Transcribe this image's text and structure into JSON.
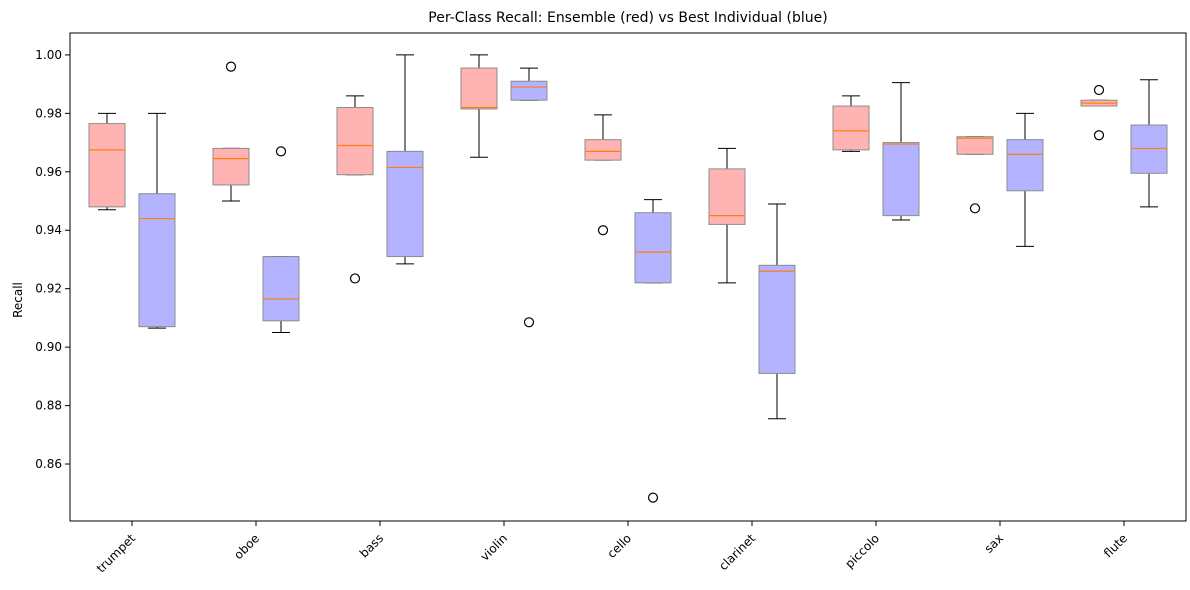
{
  "chart_data": {
    "type": "boxplot",
    "title": "Per-Class Recall: Ensemble (red) vs Best Individual (blue)",
    "xlabel": "",
    "ylabel": "Recall",
    "ylim": [
      0.8405,
      1.0075
    ],
    "yticks": [
      0.86,
      0.88,
      0.9,
      0.92,
      0.94,
      0.96,
      0.98,
      1.0
    ],
    "ytick_labels": [
      "0.86",
      "0.88",
      "0.90",
      "0.92",
      "0.94",
      "0.96",
      "0.98",
      "1.00"
    ],
    "x_tick_rotation": 45,
    "grid": false,
    "categories": [
      "trumpet",
      "oboe",
      "bass",
      "violin",
      "cello",
      "clarinet",
      "piccolo",
      "sax",
      "flute"
    ],
    "colors": {
      "ensemble_fill": "#ffb3b3",
      "individual_fill": "#b3b3ff",
      "box_edge": "#8c8c8c",
      "median": "#ff7f0e",
      "whisker": "#000000"
    },
    "series": [
      {
        "boxes": [
          {
            "whislo": 0.947,
            "q1": 0.948,
            "med": 0.9675,
            "q3": 0.9765,
            "whishi": 0.98,
            "fliers": []
          },
          {
            "whislo": 0.95,
            "q1": 0.9555,
            "med": 0.9645,
            "q3": 0.968,
            "whishi": 0.968,
            "fliers": [
              0.996
            ]
          },
          {
            "whislo": 0.959,
            "q1": 0.959,
            "med": 0.969,
            "q3": 0.982,
            "whishi": 0.986,
            "fliers": [
              0.9235
            ]
          },
          {
            "whislo": 0.965,
            "q1": 0.9815,
            "med": 0.982,
            "q3": 0.9955,
            "whishi": 1.0,
            "fliers": []
          },
          {
            "whislo": 0.964,
            "q1": 0.964,
            "med": 0.967,
            "q3": 0.971,
            "whishi": 0.9795,
            "fliers": [
              0.94
            ]
          },
          {
            "whislo": 0.922,
            "q1": 0.942,
            "med": 0.945,
            "q3": 0.961,
            "whishi": 0.968,
            "fliers": []
          },
          {
            "whislo": 0.967,
            "q1": 0.9675,
            "med": 0.974,
            "q3": 0.9825,
            "whishi": 0.986,
            "fliers": []
          },
          {
            "whislo": 0.966,
            "q1": 0.966,
            "med": 0.9715,
            "q3": 0.972,
            "whishi": 0.972,
            "fliers": [
              0.9475
            ]
          },
          {
            "whislo": 0.9825,
            "q1": 0.9825,
            "med": 0.9835,
            "q3": 0.9845,
            "whishi": 0.9845,
            "fliers": [
              0.988,
              0.9725
            ]
          }
        ]
      },
      {
        "boxes": [
          {
            "whislo": 0.9065,
            "q1": 0.907,
            "med": 0.944,
            "q3": 0.9525,
            "whishi": 0.98,
            "fliers": []
          },
          {
            "whislo": 0.905,
            "q1": 0.909,
            "med": 0.9165,
            "q3": 0.931,
            "whishi": 0.931,
            "fliers": [
              0.967
            ]
          },
          {
            "whislo": 0.9285,
            "q1": 0.931,
            "med": 0.9615,
            "q3": 0.967,
            "whishi": 1.0,
            "fliers": []
          },
          {
            "whislo": 0.9845,
            "q1": 0.9845,
            "med": 0.989,
            "q3": 0.991,
            "whishi": 0.9955,
            "fliers": [
              0.9085
            ]
          },
          {
            "whislo": 0.922,
            "q1": 0.922,
            "med": 0.9325,
            "q3": 0.946,
            "whishi": 0.9505,
            "fliers": [
              0.8485
            ]
          },
          {
            "whislo": 0.8755,
            "q1": 0.891,
            "med": 0.926,
            "q3": 0.928,
            "whishi": 0.949,
            "fliers": []
          },
          {
            "whislo": 0.9435,
            "q1": 0.945,
            "med": 0.9695,
            "q3": 0.97,
            "whishi": 0.9905,
            "fliers": []
          },
          {
            "whislo": 0.9345,
            "q1": 0.9535,
            "med": 0.966,
            "q3": 0.971,
            "whishi": 0.98,
            "fliers": []
          },
          {
            "whislo": 0.948,
            "q1": 0.9595,
            "med": 0.968,
            "q3": 0.976,
            "whishi": 0.9915,
            "fliers": []
          }
        ]
      }
    ]
  }
}
